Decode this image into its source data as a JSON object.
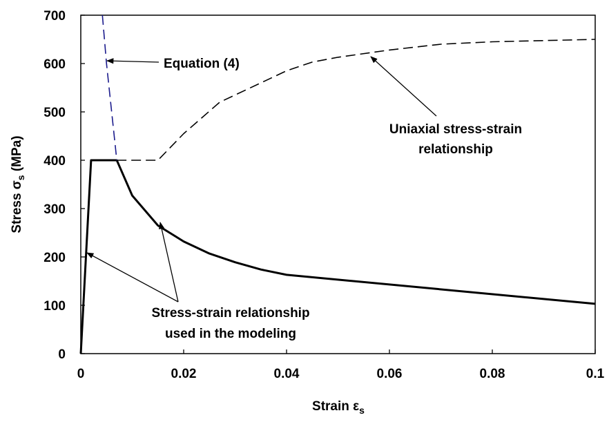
{
  "chart_data": {
    "type": "line",
    "xlabel": {
      "text": "Strain ε",
      "sub": "s"
    },
    "ylabel": {
      "text": "Stress σ",
      "sub": "s",
      "unit": " (MPa)"
    },
    "xlim": [
      0,
      0.1
    ],
    "ylim": [
      0,
      700
    ],
    "xticks": [
      0,
      0.02,
      0.04,
      0.06,
      0.08,
      0.1
    ],
    "yticks": [
      0,
      100,
      200,
      300,
      400,
      500,
      600,
      700
    ],
    "series": [
      {
        "color": "#000000",
        "dash": "solid",
        "x": [
          0,
          0.002,
          0.007,
          0.01,
          0.015,
          0.02,
          0.025,
          0.03,
          0.035,
          0.04,
          0.1
        ],
        "values": [
          0,
          400,
          400,
          327,
          265,
          232,
          207,
          189,
          174,
          163,
          103
        ]
      },
      {
        "color": "#000000",
        "dash": "dashed",
        "x": [
          0.007,
          0.015,
          0.02,
          0.027,
          0.035,
          0.04,
          0.045,
          0.05,
          0.06,
          0.07,
          0.08,
          0.1
        ],
        "values": [
          400,
          400,
          455,
          520,
          560,
          585,
          603,
          613,
          628,
          640,
          645,
          650
        ]
      },
      {
        "color": "#1a1a8c",
        "dash": "dashed",
        "x": [
          0.0042,
          0.005,
          0.007
        ],
        "values": [
          700,
          600,
          400
        ]
      }
    ],
    "annotations": [
      {
        "lines": [
          "Equation (4)"
        ]
      },
      {
        "lines": [
          "Uniaxial stress-strain",
          "relationship"
        ]
      },
      {
        "lines": [
          "Stress-strain relationship",
          "used in the modeling"
        ]
      }
    ]
  }
}
